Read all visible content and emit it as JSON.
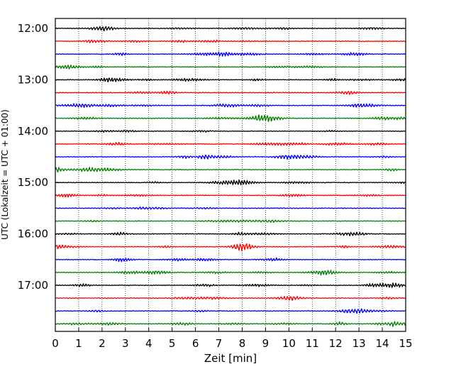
{
  "chart_data": {
    "type": "line",
    "title": "",
    "xlabel": "Zeit  [min]",
    "ylabel": "UTC (Lokalzeit = UTC + 01:00)",
    "xlim": [
      0,
      15
    ],
    "xticks": [
      "0",
      "1",
      "2",
      "3",
      "4",
      "5",
      "6",
      "7",
      "8",
      "9",
      "10",
      "11",
      "12",
      "13",
      "14",
      "15"
    ],
    "ytick_labels": [
      "12:00",
      "13:00",
      "14:00",
      "15:00",
      "16:00",
      "17:00"
    ],
    "row_start_hour": 12,
    "row_interval_minutes": 15,
    "row_count": 24,
    "grid": "vertical dotted lines at each minute",
    "trace_colors": [
      "#000000",
      "#ff0000",
      "#0000ff",
      "#008000"
    ],
    "rows": [
      {
        "start": "12:00",
        "color": "#000000"
      },
      {
        "start": "12:15",
        "color": "#ff0000"
      },
      {
        "start": "12:30",
        "color": "#0000ff"
      },
      {
        "start": "12:45",
        "color": "#008000"
      },
      {
        "start": "13:00",
        "color": "#000000"
      },
      {
        "start": "13:15",
        "color": "#ff0000"
      },
      {
        "start": "13:30",
        "color": "#0000ff"
      },
      {
        "start": "13:45",
        "color": "#008000"
      },
      {
        "start": "14:00",
        "color": "#000000"
      },
      {
        "start": "14:15",
        "color": "#ff0000"
      },
      {
        "start": "14:30",
        "color": "#0000ff"
      },
      {
        "start": "14:45",
        "color": "#008000"
      },
      {
        "start": "15:00",
        "color": "#000000"
      },
      {
        "start": "15:15",
        "color": "#ff0000"
      },
      {
        "start": "15:30",
        "color": "#0000ff"
      },
      {
        "start": "15:45",
        "color": "#008000"
      },
      {
        "start": "16:00",
        "color": "#000000"
      },
      {
        "start": "16:15",
        "color": "#ff0000"
      },
      {
        "start": "16:30",
        "color": "#0000ff"
      },
      {
        "start": "16:45",
        "color": "#008000"
      },
      {
        "start": "17:00",
        "color": "#000000"
      },
      {
        "start": "17:15",
        "color": "#ff0000"
      },
      {
        "start": "17:30",
        "color": "#0000ff"
      },
      {
        "start": "17:45",
        "color": "#008000"
      }
    ]
  }
}
